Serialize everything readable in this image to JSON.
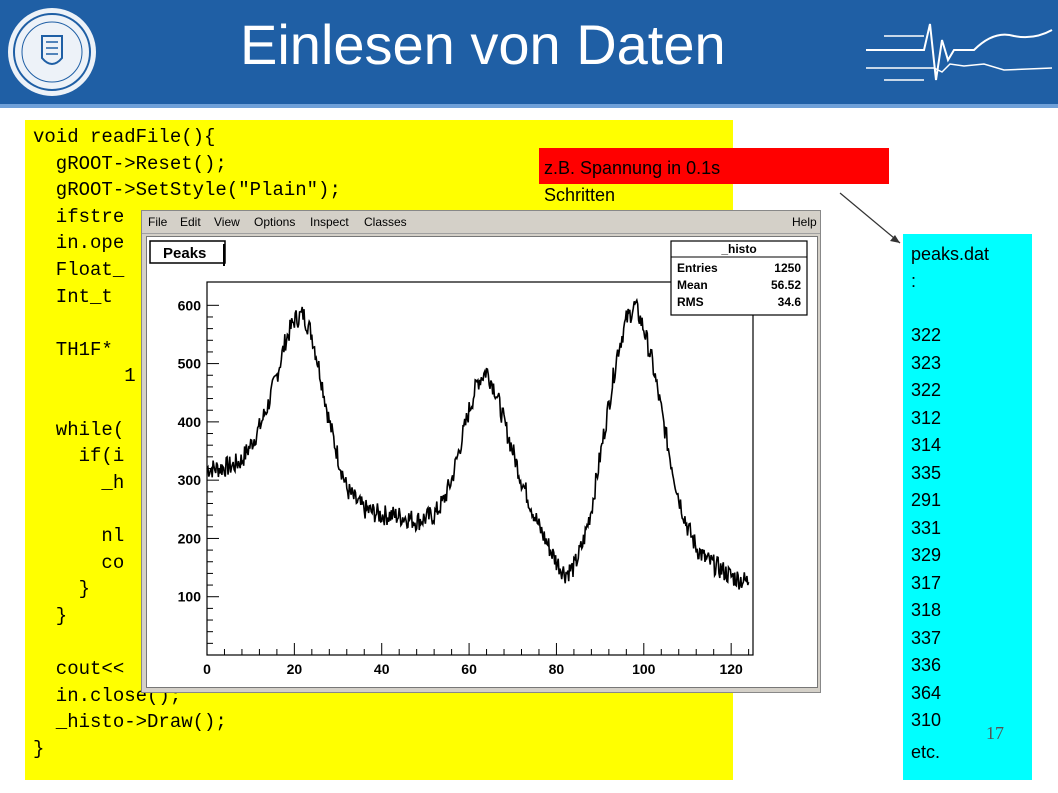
{
  "slide": {
    "title": "Einlesen von Daten",
    "page_number": "17",
    "note": "z.B. Spannung in 0.1s Schritten",
    "code_lines": [
      "void readFile(){",
      "  gROOT->Reset();",
      "  gROOT->SetStyle(\"Plain\");",
      "  ifstre",
      "  in.ope",
      "  Float_",
      "  Int_t ",
      "",
      "  TH1F* ",
      "        1",
      "",
      "  while(",
      "    if(i",
      "      _h",
      "",
      "      nl",
      "      co",
      "    }",
      "  }",
      "",
      "  cout<<",
      "  in.close();",
      "  _histo->Draw();",
      "}"
    ],
    "datafile": {
      "name": "peaks.dat",
      "colon": ":",
      "values": [
        "322",
        "323",
        "322",
        "312",
        "314",
        "335",
        "291",
        "331",
        "329",
        "317",
        "318",
        "337",
        "336",
        "364",
        "310"
      ],
      "etc": "etc."
    },
    "colors": {
      "header": "#1f5fa5",
      "code_bg": "#ffff00",
      "note_bg": "#ff0000",
      "file_bg": "#00ffff"
    }
  },
  "root_window": {
    "menu": [
      "File",
      "Edit",
      "View",
      "Options",
      "Inspect",
      "Classes"
    ],
    "help": "Help",
    "canvas_title": "Peaks",
    "stats": {
      "name": "_histo",
      "rows": [
        {
          "label": "Entries",
          "value": "1250"
        },
        {
          "label": "Mean",
          "value": "56.52"
        },
        {
          "label": "RMS",
          "value": "34.6"
        }
      ]
    }
  },
  "chart_data": {
    "type": "line",
    "title": "Peaks",
    "xlabel": "",
    "ylabel": "",
    "xlim": [
      0,
      125
    ],
    "ylim": [
      0,
      640
    ],
    "xticks": [
      0,
      20,
      40,
      60,
      80,
      100,
      120
    ],
    "yticks": [
      100,
      200,
      300,
      400,
      500,
      600
    ],
    "grid": false,
    "legend": "none",
    "series": [
      {
        "x": [
          0,
          2,
          4,
          6,
          8,
          10,
          12,
          14,
          16,
          18,
          20,
          22,
          24,
          26,
          28,
          30,
          32,
          34,
          36,
          38,
          40,
          42,
          44,
          46,
          48,
          50,
          52,
          54,
          56,
          58,
          60,
          62,
          64,
          66,
          68,
          70,
          72,
          74,
          76,
          78,
          80,
          82,
          84,
          86,
          88,
          90,
          92,
          94,
          96,
          98,
          100,
          102,
          104,
          106,
          108,
          110,
          112,
          114,
          116,
          118,
          120,
          122,
          124
        ],
        "values": [
          320,
          320,
          322,
          325,
          335,
          360,
          390,
          430,
          480,
          540,
          575,
          585,
          550,
          480,
          400,
          340,
          285,
          265,
          250,
          245,
          240,
          240,
          238,
          235,
          230,
          235,
          240,
          262,
          300,
          360,
          420,
          470,
          488,
          455,
          400,
          350,
          300,
          260,
          220,
          190,
          160,
          140,
          150,
          190,
          250,
          340,
          430,
          520,
          575,
          600,
          560,
          500,
          420,
          340,
          270,
          220,
          185,
          165,
          155,
          145,
          135,
          130,
          125
        ]
      }
    ]
  }
}
